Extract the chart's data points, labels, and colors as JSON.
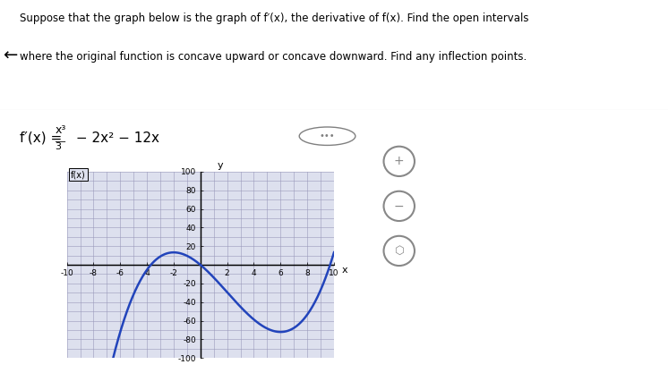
{
  "title_line1": "Suppose that the graph below is the graph of f′(x), the derivative of f(x). Find the open intervals",
  "title_line2": "where the original function is concave upward or concave downward. Find any inflection points.",
  "formula": "f′(x) = x³/3 − 2x² − 12x",
  "x_min": -10,
  "x_max": 10,
  "y_min": -100,
  "y_max": 100,
  "x_tick_step": 2,
  "y_tick_step": 20,
  "curve_color": "#2244bb",
  "curve_linewidth": 1.8,
  "grid_color": "#9999bb",
  "grid_linewidth": 0.4,
  "grid_bg": "#dde0ee",
  "fig_bg": "#ffffff",
  "fig_width": 7.46,
  "fig_height": 4.17,
  "dpi": 100
}
